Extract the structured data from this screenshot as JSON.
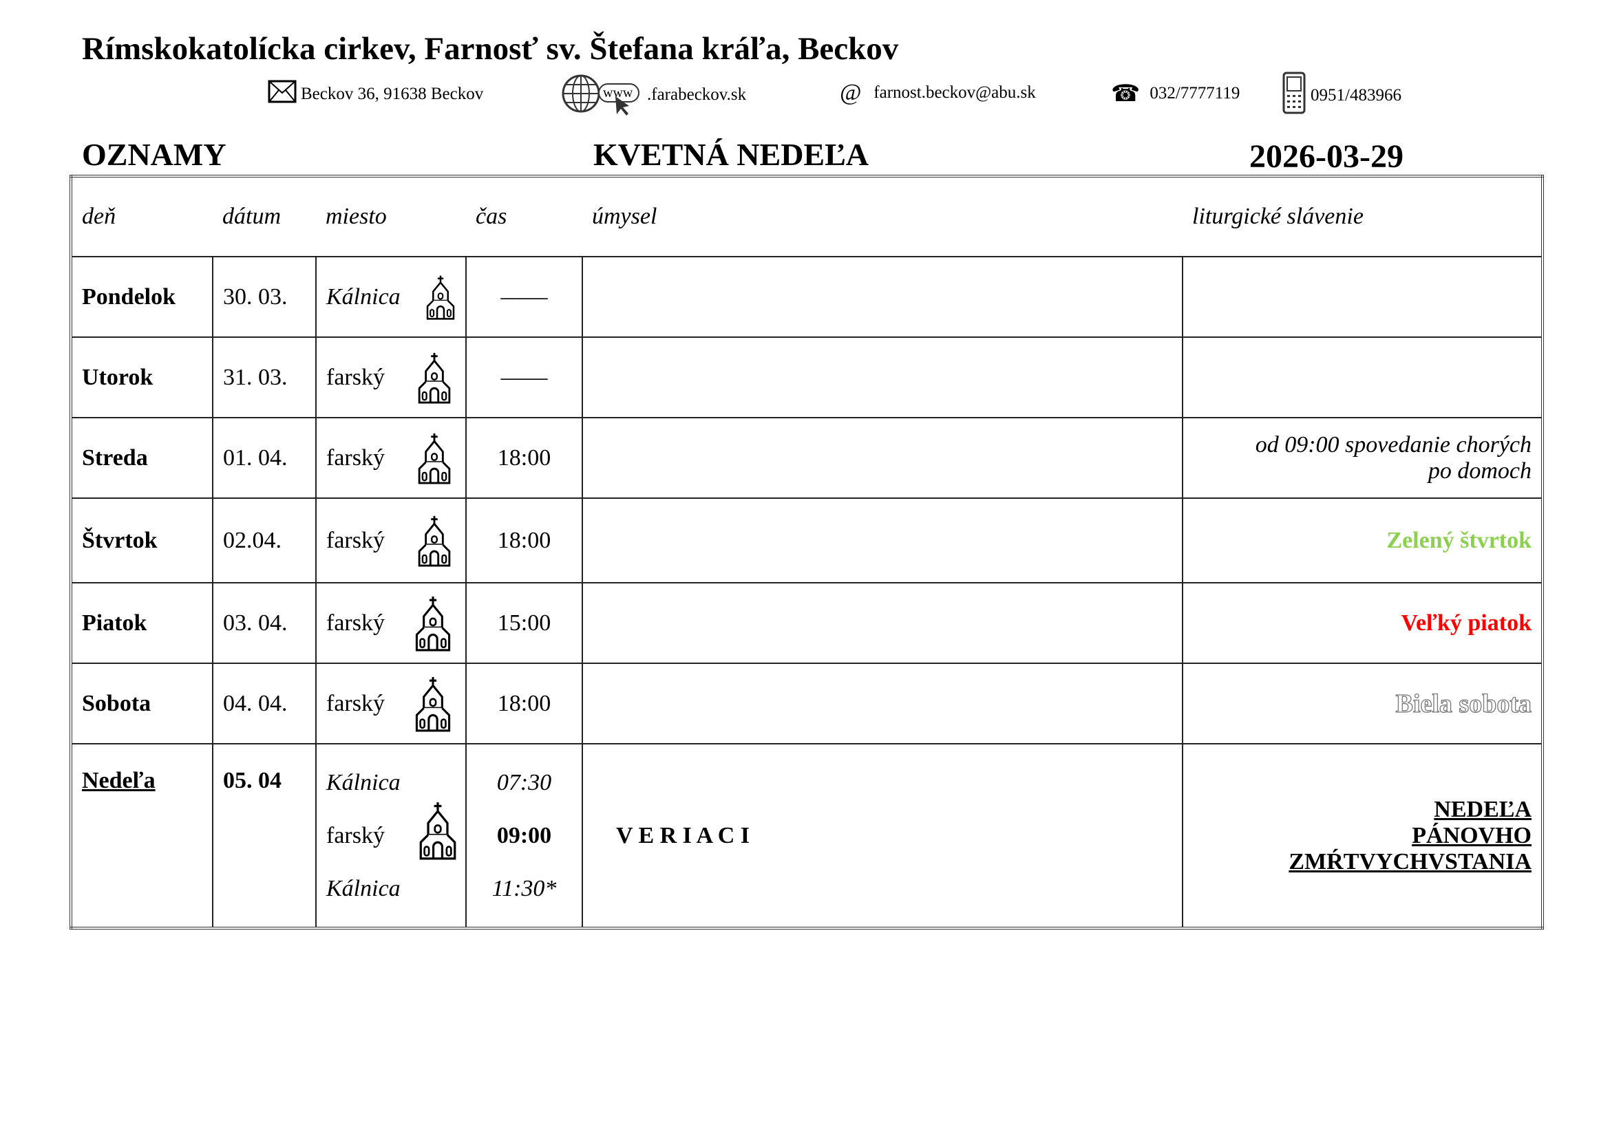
{
  "header": {
    "title": "Rímskokatolícka cirkev, Farnosť sv. Štefana kráľa, Beckov",
    "contacts": [
      {
        "icon": "envelope-icon",
        "text": "Beckov 36, 91638 Beckov"
      },
      {
        "icon": "globe-www-icon",
        "text": ".farabeckov.sk",
        "icon_text": "www"
      },
      {
        "icon": "at-icon",
        "text": "farnost.beckov@abu.sk",
        "icon_text": "@"
      },
      {
        "icon": "telephone-icon",
        "text": "032/7777119",
        "icon_text": "☎"
      },
      {
        "icon": "mobile-phone-icon",
        "text": "0951/483966"
      }
    ],
    "section": "OZNAMY",
    "occasion": "KVETNÁ NEDEĽA",
    "date": "2026-03-29"
  },
  "table": {
    "columns": [
      "deň",
      "dátum",
      "miesto",
      "čas",
      "úmysel",
      "liturgické slávenie"
    ],
    "rows": [
      {
        "day": "Pondelok",
        "date": "30. 03.",
        "place": "Kálnica",
        "time": "––––",
        "intention": "",
        "liturgy": ""
      },
      {
        "day": "Utorok",
        "date": "31. 03.",
        "place": "farský",
        "time": "––––",
        "intention": "",
        "liturgy": ""
      },
      {
        "day": "Streda",
        "date": "01. 04.",
        "place": "farský",
        "time": "18:00",
        "intention": "",
        "liturgy_line1": "od 09:00 spovedanie chorých",
        "liturgy_line2": "po domoch"
      },
      {
        "day": "Štvrtok",
        "date": "02.04.",
        "place": "farský",
        "time": "18:00",
        "intention": "",
        "liturgy": "Zelený štvrtok",
        "liturgy_color": "#8cd04f"
      },
      {
        "day": "Piatok",
        "date": "03. 04.",
        "place": "farský",
        "time": "15:00",
        "intention": "",
        "liturgy": "Veľký piatok",
        "liturgy_color": "#ff0000"
      },
      {
        "day": "Sobota",
        "date": "04. 04.",
        "place": "farský",
        "time": "18:00",
        "intention": "",
        "liturgy": "Biela sobota"
      },
      {
        "day": "Nedeľa",
        "date": "05. 04",
        "places": [
          "Kálnica",
          "farský",
          "Kálnica"
        ],
        "times": [
          "07:30",
          "09:00",
          "11:30*"
        ],
        "intention": "V E R I A C I",
        "liturgy_lines": [
          "NEDEĽA",
          "PÁNOVHO",
          "ZMŔTVYCHVSTANIA"
        ]
      }
    ]
  }
}
